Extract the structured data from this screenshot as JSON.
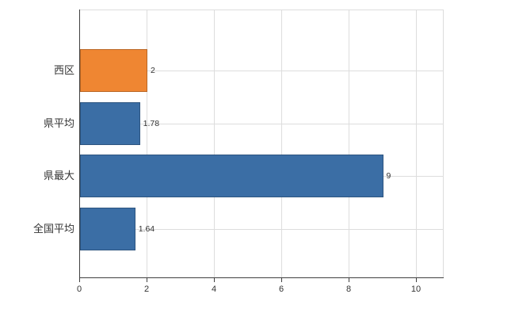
{
  "chart_data": {
    "type": "bar",
    "orientation": "horizontal",
    "title": "",
    "xlabel": "",
    "ylabel": "",
    "categories": [
      "西区",
      "県平均",
      "県最大",
      "全国平均"
    ],
    "values": [
      2,
      1.78,
      9,
      1.64
    ],
    "value_labels": [
      "2",
      "1.78",
      "9",
      "1.64"
    ],
    "bar_colors": [
      "#ef8632",
      "#3b6ea5",
      "#3b6ea5",
      "#3b6ea5"
    ],
    "x_ticks": [
      0,
      2,
      4,
      6,
      8,
      10
    ],
    "x_tick_labels": [
      "0",
      "2",
      "4",
      "6",
      "8",
      "10"
    ],
    "xlim": [
      0,
      10.8
    ],
    "grid": "vertical-and-category",
    "legend": "none"
  },
  "colors": {
    "bar_blue": "#3b6ea5",
    "bar_orange": "#ef8632",
    "grid": "#dddddd",
    "axis": "#404040",
    "text": "#333333",
    "background": "#ffffff"
  }
}
